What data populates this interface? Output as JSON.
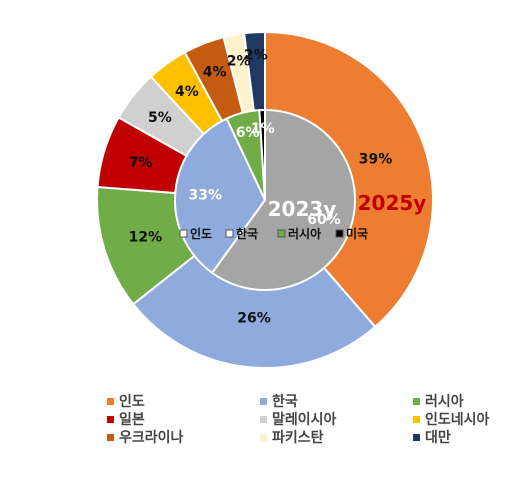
{
  "chart_data": {
    "type": "pie",
    "rings": [
      {
        "name": "2025y",
        "label": "2025y",
        "label_color": "#C00000",
        "categories": [
          "인도",
          "한국",
          "러시아",
          "일본",
          "말레이시아",
          "인도네시아",
          "우크라이나",
          "파키스탄",
          "대만"
        ],
        "values": [
          39,
          26,
          12,
          7,
          5,
          4,
          4,
          2,
          2
        ],
        "labels": [
          "39%",
          "26%",
          "12%",
          "7%",
          "5%",
          "4%",
          "4%",
          "2%",
          "2%"
        ]
      },
      {
        "name": "2023y",
        "label": "2023y",
        "label_color": "#ffffff",
        "categories": [
          "인도",
          "한국",
          "러시아",
          "미국"
        ],
        "values": [
          60,
          33,
          6,
          1
        ],
        "labels": [
          "60%",
          "33%",
          "6%",
          "1%"
        ]
      }
    ],
    "inner_legend": [
      "인도",
      "한국",
      "러시아",
      "미국"
    ],
    "legend": [
      "인도",
      "한국",
      "러시아",
      "일본",
      "말레이시아",
      "인도네시아",
      "우크라이나",
      "파키스탄",
      "대만"
    ],
    "legend_position": "bottom",
    "colors": {
      "인도": "#ED7D31",
      "한국": "#8FAADC",
      "러시아": "#70AD47",
      "일본": "#C00000",
      "말레이시아": "#D0D0D0",
      "인도네시아": "#FFC000",
      "우크라이나": "#C55A11",
      "파키스탄": "#FFF2CC",
      "대만": "#203864",
      "미국": "#000000",
      "inner_인도": "#A5A5A5"
    }
  }
}
